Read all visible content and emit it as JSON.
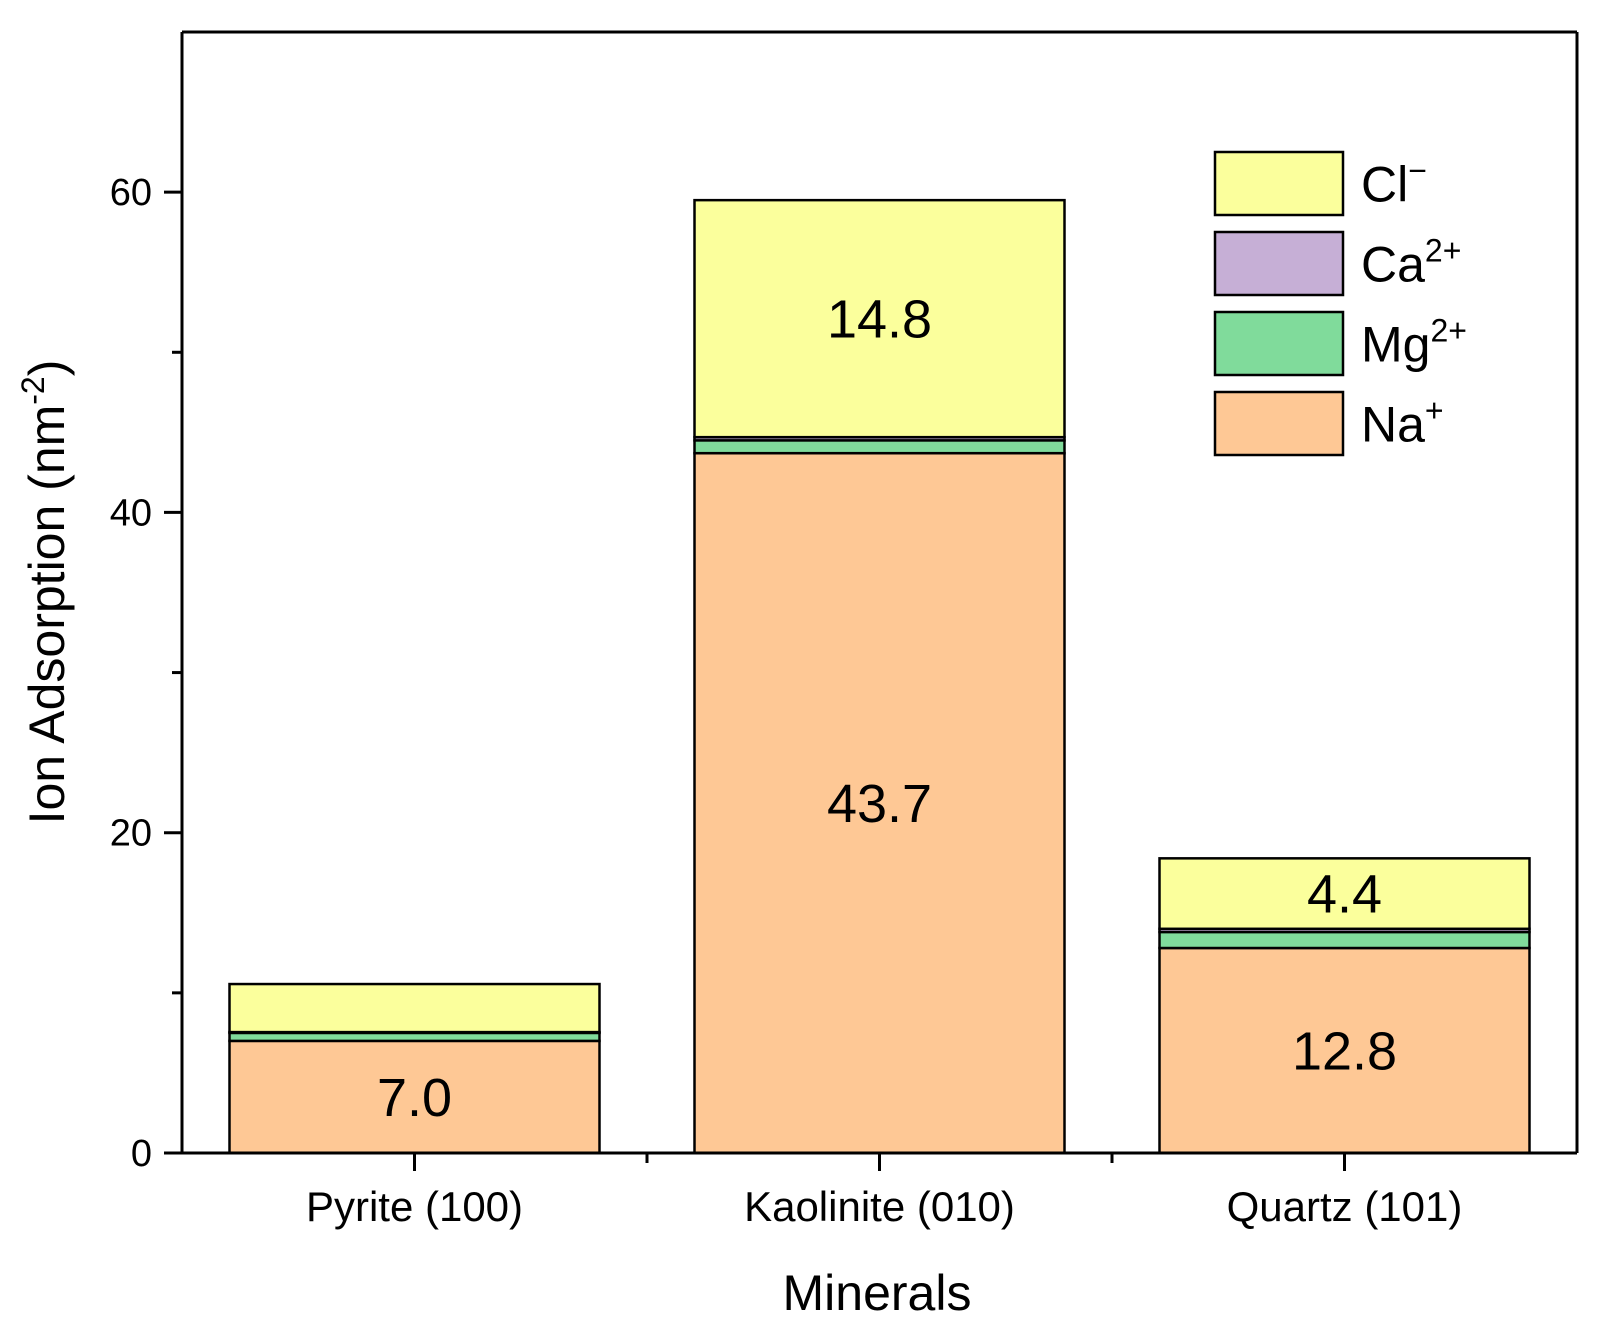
{
  "chart_data": {
    "type": "bar",
    "stacked": true,
    "title": "",
    "xlabel": "Minerals",
    "ylabel": {
      "base": "Ion Adsorption (nm",
      "sup": "-2",
      "end": ")"
    },
    "ylim": [
      0,
      70
    ],
    "yticks": [
      0,
      20,
      40,
      60
    ],
    "yminor": [
      10,
      30,
      50
    ],
    "categories": [
      "Pyrite (100)",
      "Kaolinite (010)",
      "Quartz (101)"
    ],
    "series": [
      {
        "name": "Na+",
        "label_base": "Na",
        "label_sup": "+",
        "color": "#FEC895",
        "values": [
          7.0,
          43.7,
          12.8
        ]
      },
      {
        "name": "Mg2+",
        "label_base": "Mg",
        "label_sup": "2+",
        "color": "#80DB9B",
        "values": [
          0.5,
          0.8,
          1.0
        ]
      },
      {
        "name": "Ca2+",
        "label_base": "Ca",
        "label_sup": "2+",
        "color": "#C6AFD6",
        "values": [
          0.05,
          0.2,
          0.2
        ]
      },
      {
        "name": "Cl-",
        "label_base": "Cl",
        "label_sup": "−",
        "color": "#FBFF9C",
        "values": [
          3.0,
          14.8,
          4.4
        ]
      }
    ],
    "data_labels": [
      {
        "category": 0,
        "series": 0,
        "text": "7.0"
      },
      {
        "category": 1,
        "series": 0,
        "text": "43.7"
      },
      {
        "category": 1,
        "series": 3,
        "text": "14.8"
      },
      {
        "category": 2,
        "series": 0,
        "text": "12.8"
      },
      {
        "category": 2,
        "series": 3,
        "text": "4.4"
      }
    ],
    "legend": {
      "position": "top-right",
      "order": [
        3,
        2,
        1,
        0
      ]
    }
  }
}
